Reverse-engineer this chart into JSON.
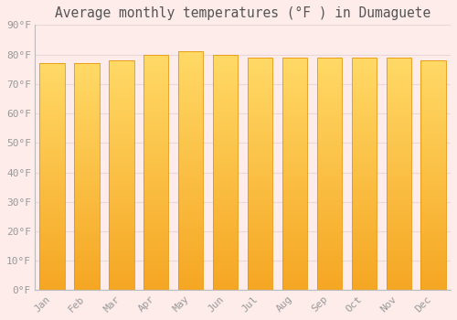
{
  "title": "Average monthly temperatures (°F ) in Dumaguete",
  "months": [
    "Jan",
    "Feb",
    "Mar",
    "Apr",
    "May",
    "Jun",
    "Jul",
    "Aug",
    "Sep",
    "Oct",
    "Nov",
    "Dec"
  ],
  "values": [
    77,
    77,
    78,
    80,
    81,
    80,
    79,
    79,
    79,
    79,
    79,
    78
  ],
  "bar_color_bottom": "#F5A623",
  "bar_color_top": "#FFD966",
  "bar_edge_color": "#E8960A",
  "ylim": [
    0,
    90
  ],
  "yticks": [
    0,
    10,
    20,
    30,
    40,
    50,
    60,
    70,
    80,
    90
  ],
  "ytick_labels": [
    "0°F",
    "10°F",
    "20°F",
    "30°F",
    "40°F",
    "50°F",
    "60°F",
    "70°F",
    "80°F",
    "90°F"
  ],
  "background_color": "#FDECEA",
  "plot_bg_color": "#FDECEA",
  "grid_color": "#E8D8D8",
  "title_fontsize": 10.5,
  "tick_fontsize": 8,
  "font_color": "#999999",
  "title_color": "#555555"
}
